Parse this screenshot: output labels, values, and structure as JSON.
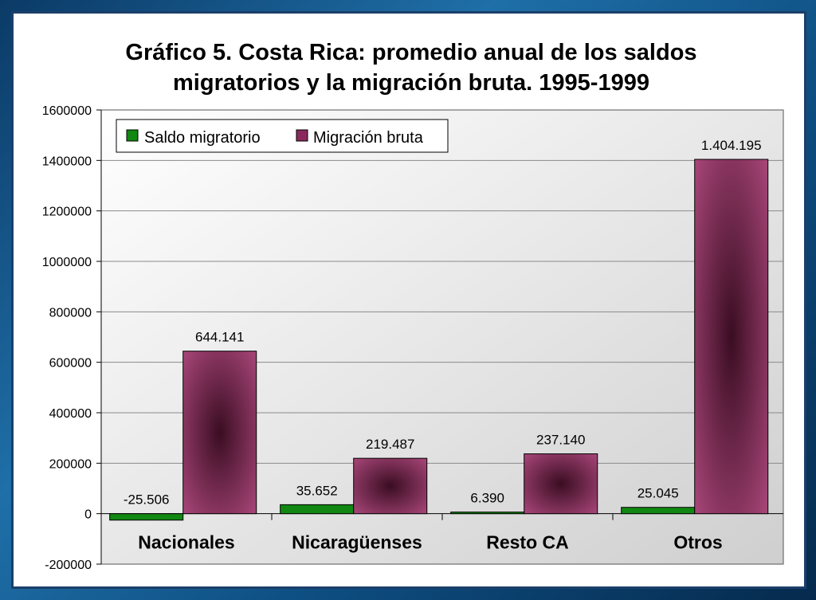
{
  "chart_data": {
    "type": "bar",
    "title_line1": "Gráfico 5. Costa Rica: promedio anual de los saldos",
    "title_line2": "migratorios y la migración bruta. 1995-1999",
    "categories": [
      "Nacionales",
      "Nicaragüenses",
      "Resto CA",
      "Otros"
    ],
    "series": [
      {
        "name": "Saldo migratorio",
        "color": "#118811",
        "values": [
          -25506,
          35652,
          6390,
          25045
        ],
        "labels": [
          "-25.506",
          "35.652",
          "6.390",
          "25.045"
        ]
      },
      {
        "name": "Migración bruta",
        "color": "#8a2a5c",
        "values": [
          644141,
          219487,
          237140,
          1404195
        ],
        "labels": [
          "644.141",
          "219.487",
          "237.140",
          "1.404.195"
        ]
      }
    ],
    "ylim": [
      -200000,
      1600000
    ],
    "yticks": [
      1600000,
      1400000,
      1200000,
      1000000,
      800000,
      600000,
      400000,
      200000,
      0,
      -200000
    ],
    "grid": true,
    "legend_position": "top-left"
  }
}
